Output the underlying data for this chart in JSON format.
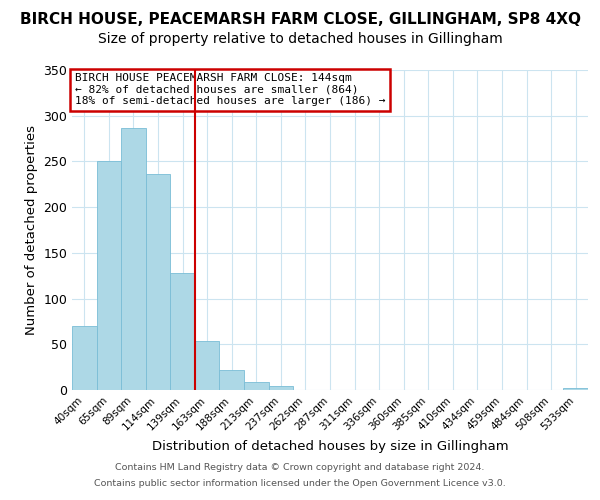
{
  "title": "BIRCH HOUSE, PEACEMARSH FARM CLOSE, GILLINGHAM, SP8 4XQ",
  "subtitle": "Size of property relative to detached houses in Gillingham",
  "xlabel": "Distribution of detached houses by size in Gillingham",
  "ylabel": "Number of detached properties",
  "bar_labels": [
    "40sqm",
    "65sqm",
    "89sqm",
    "114sqm",
    "139sqm",
    "163sqm",
    "188sqm",
    "213sqm",
    "237sqm",
    "262sqm",
    "287sqm",
    "311sqm",
    "336sqm",
    "360sqm",
    "385sqm",
    "410sqm",
    "434sqm",
    "459sqm",
    "484sqm",
    "508sqm",
    "533sqm"
  ],
  "bar_values": [
    70,
    250,
    287,
    236,
    128,
    54,
    22,
    9,
    4,
    0,
    0,
    0,
    0,
    0,
    0,
    0,
    0,
    0,
    0,
    0,
    2
  ],
  "bar_color": "#add8e6",
  "bar_edge_color": "#7abdd6",
  "vline_x": 4.5,
  "vline_color": "#cc0000",
  "annotation_title": "BIRCH HOUSE PEACEMARSH FARM CLOSE: 144sqm",
  "annotation_line1": "← 82% of detached houses are smaller (864)",
  "annotation_line2": "18% of semi-detached houses are larger (186) →",
  "annotation_box_color": "#ffffff",
  "annotation_border_color": "#cc0000",
  "ylim": [
    0,
    350
  ],
  "yticks": [
    0,
    50,
    100,
    150,
    200,
    250,
    300,
    350
  ],
  "footer1": "Contains HM Land Registry data © Crown copyright and database right 2024.",
  "footer2": "Contains public sector information licensed under the Open Government Licence v3.0.",
  "bg_color": "#ffffff",
  "grid_color": "#cce4f0",
  "title_fontsize": 11,
  "subtitle_fontsize": 10
}
